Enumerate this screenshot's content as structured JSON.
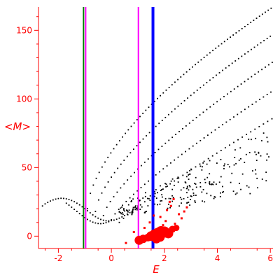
{
  "chart_data": {
    "type": "scatter",
    "xlabel": "E",
    "ylabel": "<M>",
    "xlim": [
      -2.75,
      6.1
    ],
    "ylim": [
      -9,
      167
    ],
    "x_ticks": [
      -2,
      0,
      2,
      4,
      6
    ],
    "y_ticks": [
      0,
      50,
      100,
      150
    ],
    "axis_color": "#ff0000",
    "point_color": "#000000",
    "highlight_color": "#ff0000",
    "vertical_lines": [
      {
        "x": -1.05,
        "color": "#008000",
        "width": 2
      },
      {
        "x": -0.97,
        "color": "#ff00ff",
        "width": 2
      },
      {
        "x": 1.02,
        "color": "#ff00ff",
        "width": 2
      },
      {
        "x": 1.57,
        "color": "#0000ff",
        "width": 4
      }
    ],
    "bands": [
      {
        "x_start": -0.9,
        "x_end": 6.1,
        "y_start": 20,
        "y_end": 167,
        "power": 0.62,
        "step": 0.11
      },
      {
        "x_start": -0.6,
        "x_end": 6.1,
        "y_start": 18,
        "y_end": 147,
        "power": 0.68,
        "step": 0.12
      },
      {
        "x_start": -0.3,
        "x_end": 6.1,
        "y_start": 15,
        "y_end": 127,
        "power": 0.75,
        "step": 0.13
      },
      {
        "x_start": 0.0,
        "x_end": 6.1,
        "y_start": 12,
        "y_end": 106,
        "power": 0.82,
        "step": 0.14
      },
      {
        "x_start": 0.3,
        "x_end": 6.1,
        "y_start": 10,
        "y_end": 86,
        "power": 0.9,
        "step": 0.16
      }
    ],
    "left_arc": [
      [
        -2.6,
        22
      ],
      [
        -2.5,
        23.5
      ],
      [
        -2.4,
        24.6
      ],
      [
        -2.3,
        25.6
      ],
      [
        -2.2,
        26.4
      ],
      [
        -2.1,
        27
      ],
      [
        -2.0,
        27.4
      ],
      [
        -1.9,
        27.6
      ],
      [
        -1.8,
        27.5
      ],
      [
        -1.7,
        27.2
      ],
      [
        -1.6,
        26.7
      ],
      [
        -1.5,
        26
      ],
      [
        -1.4,
        25.1
      ],
      [
        -1.3,
        24
      ],
      [
        -1.2,
        22.8
      ],
      [
        -1.1,
        21.4
      ],
      [
        -1.0,
        20
      ],
      [
        -0.9,
        18.5
      ],
      [
        -0.8,
        17
      ],
      [
        -0.7,
        15.5
      ],
      [
        -0.6,
        14.2
      ],
      [
        -0.5,
        13.1
      ],
      [
        -0.4,
        12.2
      ],
      [
        -0.3,
        11.6
      ],
      [
        -0.2,
        11.2
      ],
      [
        -0.1,
        11.1
      ],
      [
        0.0,
        11.3
      ],
      [
        0.1,
        11.7
      ],
      [
        0.2,
        12.3
      ],
      [
        0.3,
        13.1
      ],
      [
        0.4,
        14
      ],
      [
        0.5,
        15
      ],
      [
        0.6,
        16.1
      ],
      [
        0.7,
        17.2
      ],
      [
        0.8,
        18.3
      ],
      [
        0.9,
        19.4
      ],
      [
        1.0,
        20.5
      ]
    ],
    "lower_arc": [
      [
        -1.7,
        24
      ],
      [
        -1.6,
        22.6
      ],
      [
        -1.5,
        21.1
      ],
      [
        -1.4,
        19.5
      ],
      [
        -1.3,
        18
      ],
      [
        -1.2,
        16.4
      ],
      [
        -1.1,
        14.9
      ],
      [
        -1.0,
        13.5
      ],
      [
        -0.9,
        12.2
      ],
      [
        -0.8,
        11.1
      ],
      [
        -0.7,
        10.2
      ],
      [
        -0.6,
        9.6
      ],
      [
        -0.5,
        9.2
      ],
      [
        -0.4,
        9.1
      ],
      [
        -0.3,
        9.3
      ],
      [
        -0.2,
        9.8
      ],
      [
        -0.1,
        10.5
      ],
      [
        0.0,
        11.4
      ]
    ],
    "scatter_cloud": {
      "x_start": 0.3,
      "x_end": 6.1,
      "count": 220,
      "y_low_base": 14,
      "y_low_slope": 3.2,
      "y_high_base": 22,
      "y_high_slope": 10,
      "seed": 7
    },
    "red_points": [
      {
        "x": 1.05,
        "y": -3,
        "size": 9
      },
      {
        "x": 1.2,
        "y": -2,
        "size": 8
      },
      {
        "x": 1.38,
        "y": -1,
        "size": 7
      },
      {
        "x": 1.5,
        "y": 0,
        "size": 10
      },
      {
        "x": 1.62,
        "y": 1,
        "size": 11
      },
      {
        "x": 1.75,
        "y": 2,
        "size": 12
      },
      {
        "x": 1.88,
        "y": 3,
        "size": 13
      },
      {
        "x": 2.0,
        "y": 3,
        "size": 12
      },
      {
        "x": 2.15,
        "y": 2,
        "size": 10
      },
      {
        "x": 1.7,
        "y": -2,
        "size": 9
      },
      {
        "x": 1.85,
        "y": -1,
        "size": 8
      },
      {
        "x": 2.3,
        "y": 5,
        "size": 6
      },
      {
        "x": 2.45,
        "y": 6,
        "size": 5
      },
      {
        "x": 0.55,
        "y": -5,
        "size": 3
      },
      {
        "x": 0.85,
        "y": 3,
        "size": 3
      },
      {
        "x": 1.25,
        "y": 6,
        "size": 3
      },
      {
        "x": 1.45,
        "y": 10,
        "size": 3
      },
      {
        "x": 1.85,
        "y": 14,
        "size": 3
      },
      {
        "x": 2.1,
        "y": 19,
        "size": 3
      },
      {
        "x": 2.25,
        "y": 22,
        "size": 3
      },
      {
        "x": 2.35,
        "y": 27,
        "size": 3
      },
      {
        "x": 2.55,
        "y": 16,
        "size": 3
      },
      {
        "x": 2.65,
        "y": 13,
        "size": 3
      },
      {
        "x": 2.05,
        "y": 11,
        "size": 3
      },
      {
        "x": 2.75,
        "y": 18,
        "size": 3
      },
      {
        "x": 1.95,
        "y": 8,
        "size": 3
      },
      {
        "x": 2.4,
        "y": 9,
        "size": 3
      },
      {
        "x": 1.6,
        "y": 15,
        "size": 3
      },
      {
        "x": 2.2,
        "y": 25,
        "size": 3
      },
      {
        "x": 2.85,
        "y": 21,
        "size": 3
      }
    ]
  }
}
